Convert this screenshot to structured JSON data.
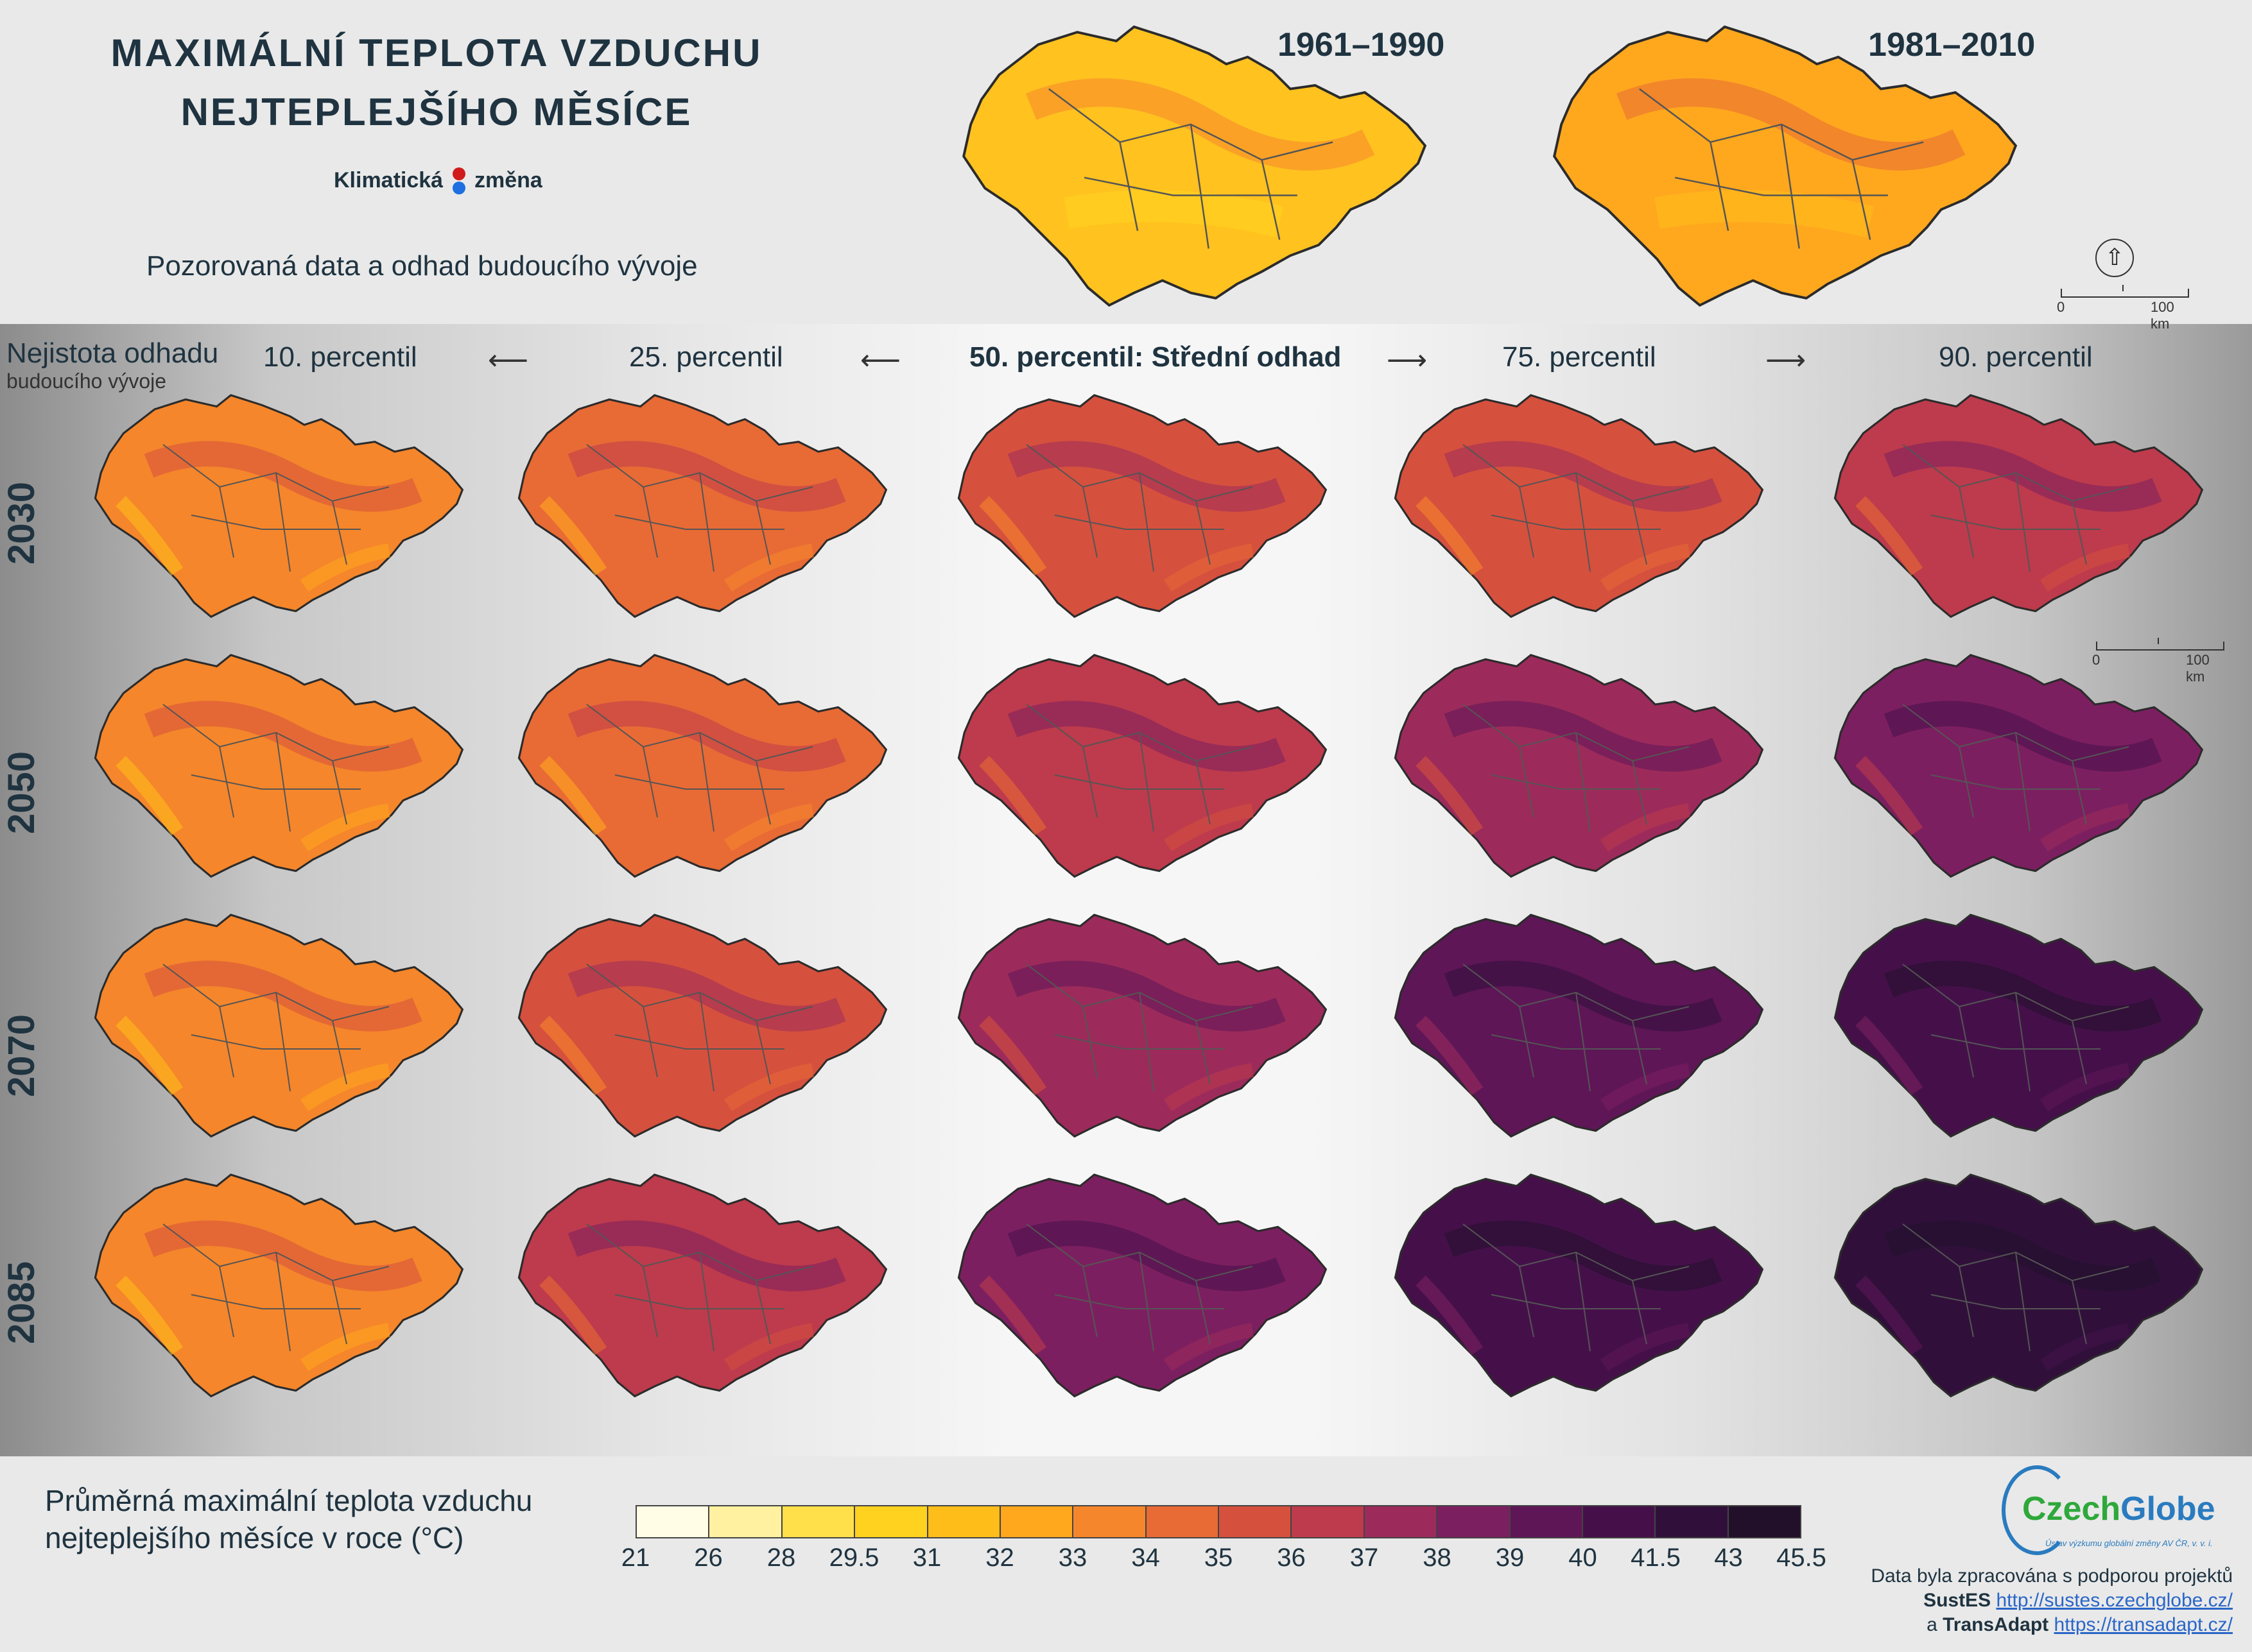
{
  "header": {
    "title_line1": "MAXIMÁLNÍ TEPLOTA VZDUCHU",
    "title_line2": "NEJTEPLEJŠÍHO MĚSÍCE",
    "brand_left": "Klimatická",
    "brand_right": "změna",
    "subtitle": "Pozorovaná data a odhad budoucího vývoje"
  },
  "observed": {
    "period_1": "1961–1990",
    "period_2": "1981–2010",
    "scale_zero": "0",
    "scale_label": "100 km"
  },
  "grid": {
    "uncertainty_line1": "Nejistota odhadu",
    "uncertainty_line2": "budoucího vývoje",
    "percentiles": [
      "10. percentil",
      "25. percentil",
      "50. percentil: Střední odhad",
      "75. percentil",
      "90. percentil"
    ],
    "arrow_left": "⟵",
    "arrow_right": "⟶",
    "years": [
      "2030",
      "2050",
      "2070",
      "2085"
    ],
    "scale_zero": "0",
    "scale_label": "100 km"
  },
  "legend": {
    "title_line1": "Průměrná maximální teplota vzduchu",
    "title_line2": "nejteplejšího měsíce v roce (°C)",
    "ticks": [
      "21",
      "26",
      "28",
      "29.5",
      "31",
      "32",
      "33",
      "34",
      "35",
      "36",
      "37",
      "38",
      "39",
      "40",
      "41.5",
      "43",
      "45.5"
    ],
    "colors": [
      "#fffde6",
      "#fff1a0",
      "#ffe04a",
      "#ffd21f",
      "#ffbd1a",
      "#ffa81e",
      "#f5862b",
      "#e86a35",
      "#d6503e",
      "#bd3b4c",
      "#9c2b5b",
      "#7c1f60",
      "#5e1657",
      "#45104a",
      "#30103a",
      "#22102b"
    ]
  },
  "credits": {
    "logo_czech": "Czech",
    "logo_globe": "Globe",
    "logo_sub": "Ústav výzkumu globální změny AV ČR, v. v. i.",
    "line1": "Data byla zpracována s podporou projektů",
    "project1": "SustES",
    "link1": "http://sustes.czechglobe.cz/",
    "conj": "a",
    "project2": "TransAdapt",
    "link2": "https://transadapt.cz/"
  },
  "map_colors": {
    "border": "#2b2b2b",
    "region_line": "#555555"
  }
}
